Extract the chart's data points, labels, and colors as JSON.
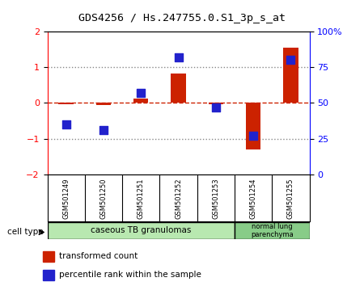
{
  "title": "GDS4256 / Hs.247755.0.S1_3p_s_at",
  "samples": [
    "GSM501249",
    "GSM501250",
    "GSM501251",
    "GSM501252",
    "GSM501253",
    "GSM501254",
    "GSM501255"
  ],
  "transformed_count": [
    -0.04,
    -0.06,
    0.13,
    0.82,
    -0.04,
    -1.3,
    1.55
  ],
  "percentile_rank": [
    35,
    31,
    57,
    82,
    47,
    27,
    80
  ],
  "ylim_left": [
    -2,
    2
  ],
  "ylim_right": [
    0,
    100
  ],
  "yticks_left": [
    -2,
    -1,
    0,
    1,
    2
  ],
  "yticks_right": [
    0,
    25,
    50,
    75,
    100
  ],
  "ytick_labels_right": [
    "0",
    "25",
    "50",
    "75",
    "100%"
  ],
  "hlines_dotted": [
    -1,
    1
  ],
  "hline_dashed": 0,
  "group1_label": "caseous TB granulomas",
  "group1_color": "#b8e8b0",
  "group1_count": 5,
  "group2_label": "normal lung\nparenchyma",
  "group2_color": "#88cc88",
  "group2_count": 2,
  "bar_color": "#cc2200",
  "dot_color": "#2222cc",
  "dashed_line_color": "#cc2200",
  "grid_color": "#888888",
  "bar_width": 0.4,
  "dot_size": 55,
  "legend_label_bar": "transformed count",
  "legend_label_dot": "percentile rank within the sample",
  "cell_type_label": "cell type"
}
